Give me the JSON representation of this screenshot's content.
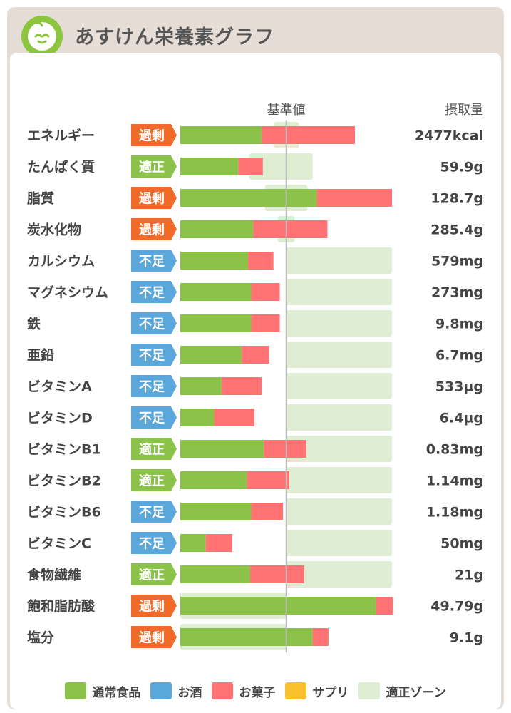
{
  "header": {
    "title": "あすけん栄養素グラフ",
    "icon": "apple-icon"
  },
  "colors": {
    "food": "#8bc34a",
    "alcohol": "#5aa7dc",
    "snack": "#ff7375",
    "supplement": "#fbc02d",
    "zone": "#dfedd3",
    "status_over": "#f06a2a",
    "status_ok": "#8bc34a",
    "status_short": "#5aa7dc"
  },
  "chart_data": {
    "type": "bar",
    "title": "あすけん栄養素グラフ",
    "reference_label": "基準値",
    "value_header": "摂取量",
    "unit": "% of 基準値 (estimated)",
    "xlim": [
      0,
      200
    ],
    "reference": 100,
    "categories": [
      "エネルギー",
      "たんぱく質",
      "脂質",
      "炭水化物",
      "カルシウム",
      "マグネシウム",
      "鉄",
      "亜鉛",
      "ビタミンA",
      "ビタミンD",
      "ビタミンB1",
      "ビタミンB2",
      "ビタミンB6",
      "ビタミンC",
      "食物繊維",
      "飽和脂肪酸",
      "塩分"
    ],
    "status": [
      "過剰",
      "適正",
      "過剰",
      "過剰",
      "不足",
      "不足",
      "不足",
      "不足",
      "不足",
      "不足",
      "適正",
      "適正",
      "不足",
      "不足",
      "適正",
      "過剰",
      "過剰"
    ],
    "status_type": [
      "over",
      "ok",
      "over",
      "over",
      "short",
      "short",
      "short",
      "short",
      "short",
      "short",
      "ok",
      "ok",
      "short",
      "short",
      "ok",
      "over",
      "over"
    ],
    "intake_labels": [
      "2477kcal",
      "59.9g",
      "128.7g",
      "285.4g",
      "579mg",
      "273mg",
      "9.8mg",
      "6.7mg",
      "533µg",
      "6.4µg",
      "0.83mg",
      "1.14mg",
      "1.18mg",
      "50mg",
      "21g",
      "49.79g",
      "9.1g"
    ],
    "series": [
      {
        "name": "通常食品",
        "key": "food",
        "values": [
          77,
          55,
          129,
          69,
          64,
          67,
          67,
          58,
          39,
          32,
          79,
          63,
          67,
          24,
          66,
          185,
          125
        ]
      },
      {
        "name": "お酒",
        "key": "alcohol",
        "values": [
          0,
          0,
          0,
          0,
          0,
          0,
          0,
          0,
          0,
          0,
          0,
          0,
          0,
          0,
          0,
          0,
          0
        ]
      },
      {
        "name": "お菓子",
        "key": "snack",
        "values": [
          88,
          23,
          71,
          70,
          24,
          27,
          27,
          26,
          38,
          38,
          40,
          40,
          30,
          25,
          51,
          16,
          15
        ]
      },
      {
        "name": "サプリ",
        "key": "supplement",
        "values": [
          0,
          0,
          0,
          0,
          0,
          0,
          0,
          0,
          0,
          0,
          0,
          0,
          0,
          0,
          0,
          0,
          0
        ]
      }
    ],
    "ideal_zone": [
      [
        88,
        112
      ],
      [
        65,
        125
      ],
      [
        80,
        120
      ],
      [
        92,
        108
      ],
      [
        100,
        200
      ],
      [
        100,
        200
      ],
      [
        100,
        200
      ],
      [
        100,
        200
      ],
      [
        100,
        200
      ],
      [
        100,
        200
      ],
      [
        100,
        200
      ],
      [
        100,
        200
      ],
      [
        100,
        200
      ],
      [
        100,
        200
      ],
      [
        100,
        200
      ],
      [
        0,
        100
      ],
      [
        0,
        100
      ]
    ],
    "legend": [
      {
        "label": "通常食品",
        "key": "food"
      },
      {
        "label": "お酒",
        "key": "alcohol"
      },
      {
        "label": "お菓子",
        "key": "snack"
      },
      {
        "label": "サプリ",
        "key": "supplement"
      },
      {
        "label": "適正ゾーン",
        "key": "zone"
      }
    ]
  }
}
